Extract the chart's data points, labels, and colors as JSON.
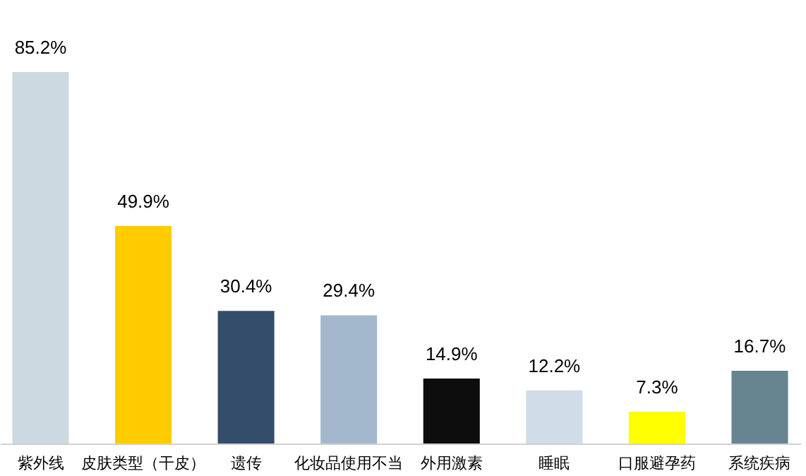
{
  "chart_data": {
    "type": "bar",
    "categories": [
      "紫外线",
      "皮肤类型（干皮）",
      "遗传",
      "化妆品使用不当",
      "外用激素",
      "睡眠",
      "口服避孕药",
      "系统疾病"
    ],
    "values": [
      85.2,
      49.9,
      30.4,
      29.4,
      14.9,
      12.2,
      7.3,
      16.7
    ],
    "colors": [
      "#ccd9e0",
      "#ffcc00",
      "#344d6b",
      "#a3b8cc",
      "#0d0d0d",
      "#d0dce8",
      "#ffff00",
      "#668591"
    ],
    "value_labels": [
      "85.2%",
      "49.9%",
      "30.4%",
      "29.4%",
      "14.9%",
      "12.2%",
      "7.3%",
      "16.7%"
    ],
    "grid": false,
    "legend": false
  }
}
